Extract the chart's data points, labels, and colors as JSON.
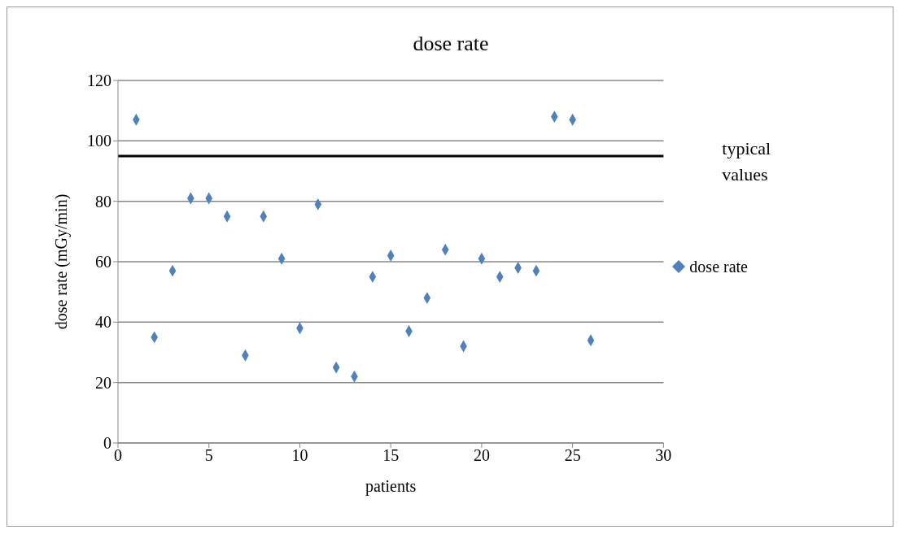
{
  "chart_data": {
    "type": "scatter",
    "title": "dose rate",
    "xlabel": "patients",
    "ylabel": "dose rate (mGy/min)",
    "x": [
      1,
      2,
      3,
      4,
      5,
      6,
      7,
      8,
      9,
      10,
      11,
      12,
      13,
      14,
      15,
      16,
      17,
      18,
      19,
      20,
      21,
      22,
      23,
      24,
      25,
      26
    ],
    "series": [
      {
        "name": "dose rate",
        "color": "#4f81bd",
        "values": [
          107,
          35,
          57,
          81,
          81,
          75,
          29,
          75,
          61,
          38,
          79,
          25,
          22,
          55,
          62,
          37,
          48,
          64,
          32,
          61,
          55,
          58,
          57,
          108,
          107,
          34
        ]
      }
    ],
    "xlim": [
      0,
      30
    ],
    "xticks": [
      0,
      5,
      10,
      15,
      20,
      25,
      30
    ],
    "ylim": [
      0,
      120
    ],
    "yticks": [
      0,
      20,
      40,
      60,
      80,
      100,
      120
    ],
    "grid": "y",
    "legend": "right",
    "marker": "diamond",
    "ref_lines": [
      {
        "axis": "y",
        "value": 95,
        "label": "typical values",
        "color": "#000000"
      }
    ]
  }
}
